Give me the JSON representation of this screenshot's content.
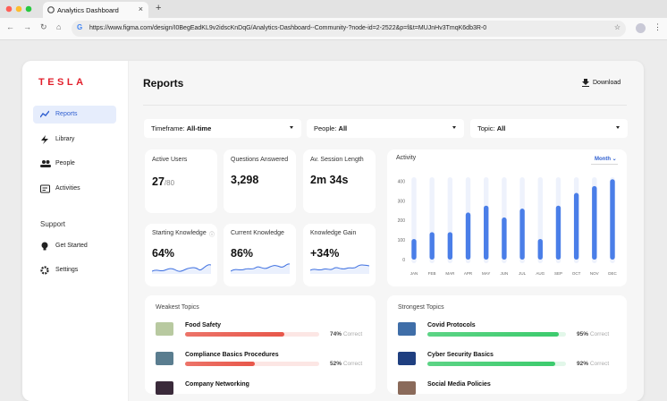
{
  "browser": {
    "tab_title": "Analytics Dashboard",
    "url": "https://www.figma.com/design/I0BegEadKL9v2idscKnDqG/Analytics-Dashboard--Community-?node-id=2-2522&p=f&t=MUJnHv3TmqK6db3R-0"
  },
  "sidebar": {
    "logo": "TESLA",
    "nav": [
      "Reports",
      "Library",
      "People",
      "Activities"
    ],
    "support_heading": "Support",
    "support": [
      "Get Started",
      "Settings"
    ]
  },
  "header": {
    "title": "Reports",
    "download": "Download"
  },
  "filters": [
    {
      "label": "Timeframe:",
      "value": "All-time"
    },
    {
      "label": "People:",
      "value": "All"
    },
    {
      "label": "Topic:",
      "value": "All"
    }
  ],
  "stats": [
    {
      "label": "Active Users",
      "value": "27",
      "suffix": "/80"
    },
    {
      "label": "Questions Answered",
      "value": "3,298"
    },
    {
      "label": "Av. Session Length",
      "value": "2m 34s"
    },
    {
      "label": "Starting Knowledge",
      "value": "64%"
    },
    {
      "label": "Current Knowledge",
      "value": "86%"
    },
    {
      "label": "Knowledge Gain",
      "value": "+34%"
    }
  ],
  "activity": {
    "type": "bar",
    "title": "Activity",
    "period": "Month",
    "categories": [
      "JAN",
      "FEB",
      "MAR",
      "APR",
      "MAY",
      "JUN",
      "JUL",
      "AUG",
      "SEP",
      "OCT",
      "NOV",
      "DEC"
    ],
    "values": [
      105,
      140,
      140,
      240,
      275,
      215,
      260,
      105,
      275,
      340,
      375,
      410
    ],
    "ylim": [
      0,
      420
    ],
    "yticks": [
      0,
      100,
      200,
      300,
      400
    ],
    "color": "#4a7ee8"
  },
  "weakest": {
    "title": "Weakest Topics",
    "color": "#e8574a",
    "items": [
      {
        "name": "Food Safety",
        "value": 74,
        "value_label": "74%",
        "status": "Correct"
      },
      {
        "name": "Compliance Basics Procedures",
        "value": 52,
        "value_label": "52%",
        "status": "Correct"
      },
      {
        "name": "Company Networking"
      }
    ]
  },
  "strongest": {
    "title": "Strongest Topics",
    "color": "#3ccb6d",
    "items": [
      {
        "name": "Covid Protocols",
        "value": 95,
        "value_label": "95%",
        "status": "Correct"
      },
      {
        "name": "Cyber Security Basics",
        "value": 92,
        "value_label": "92%",
        "status": "Correct"
      },
      {
        "name": "Social Media Policies"
      }
    ]
  }
}
